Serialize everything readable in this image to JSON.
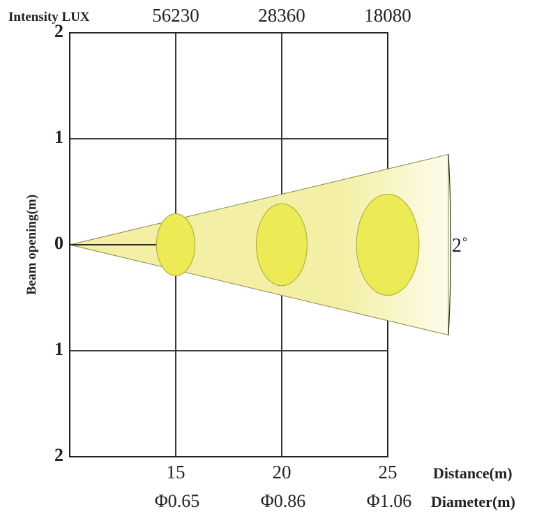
{
  "chart_data": {
    "type": "line",
    "title": "",
    "header_label": "Intensity LUX",
    "ylabel": "Beam opening(m)",
    "xlabel": "Distance(m)",
    "diameter_label": "Diameter(m)",
    "beam_angle_label": "2˚",
    "x_ticks": [
      15,
      20,
      25
    ],
    "intensity": [
      "56230",
      "28360",
      "18080"
    ],
    "diameters": [
      "Φ0.65",
      "Φ0.86",
      "Φ1.06"
    ],
    "y_tick_labels": [
      "2",
      "1",
      "0",
      "1",
      "2"
    ],
    "xlim": [
      10,
      25
    ],
    "ylim": [
      -2,
      2
    ],
    "beam_angle_deg": 2,
    "series": [
      {
        "x": [
          10,
          15,
          20,
          25
        ],
        "diameter": [
          0,
          0.65,
          0.86,
          1.06
        ]
      }
    ],
    "grid": true,
    "colors": {
      "beam_fill": "#f3f0a6",
      "beam_fade": "#fdfcea",
      "spot_fill": "#ecea55",
      "spot_stroke": "#a6a63a",
      "beam_core": "#2b2b14",
      "grid": "#222222",
      "text": "#222222"
    }
  }
}
